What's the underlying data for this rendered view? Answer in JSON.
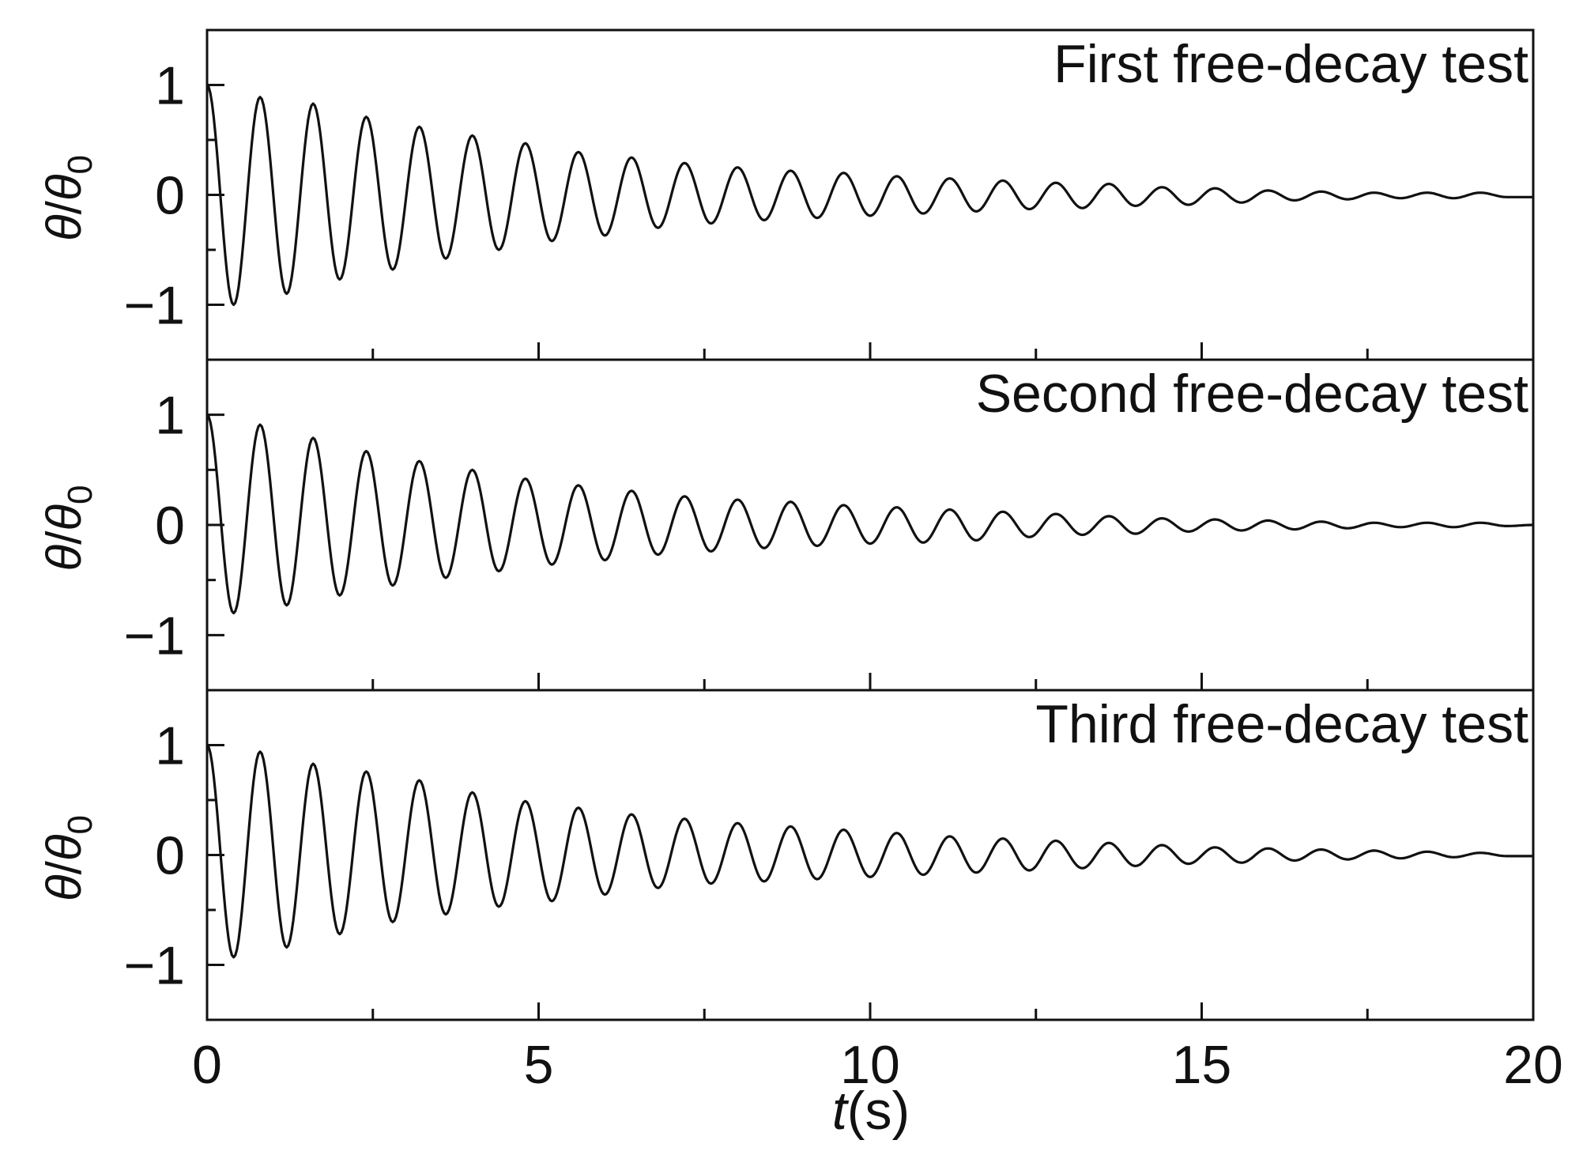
{
  "chart_data": [
    {
      "type": "line",
      "title": "First free-decay test",
      "xlabel": "",
      "ylabel": "θ/θ0",
      "ylabel_parts": {
        "num": "θ",
        "slash": "/",
        "den": "θ",
        "sub": "0"
      },
      "xlim": [
        0,
        20
      ],
      "ylim": [
        -1.5,
        1.5
      ],
      "yticks": [
        -1,
        0,
        1
      ],
      "ytick_labels": [
        "−1",
        "0",
        "1"
      ],
      "grid": false,
      "series": [
        {
          "x": [
            0,
            0.4,
            0.8,
            1.2,
            1.6,
            2.0,
            2.4,
            2.8,
            3.2,
            3.6,
            4.0,
            4.4,
            4.8,
            5.2,
            5.6,
            6.0,
            6.4,
            6.8,
            7.2,
            7.6,
            8.0,
            8.4,
            8.8,
            9.2,
            9.6,
            10.0,
            10.4,
            10.8,
            11.2,
            11.6,
            12.0,
            12.4,
            12.8,
            13.2,
            13.6,
            14.0,
            14.4,
            14.8,
            15.2,
            15.6,
            16.0,
            16.4,
            16.8,
            17.2,
            17.6,
            18.0,
            18.4,
            18.8,
            19.2,
            19.6,
            20.0
          ],
          "y": [
            1.0,
            -1.0,
            0.89,
            -0.9,
            0.83,
            -0.77,
            0.71,
            -0.68,
            0.62,
            -0.58,
            0.54,
            -0.5,
            0.47,
            -0.42,
            0.39,
            -0.37,
            0.34,
            -0.3,
            0.29,
            -0.26,
            0.25,
            -0.23,
            0.22,
            -0.21,
            0.2,
            -0.19,
            0.17,
            -0.17,
            0.15,
            -0.15,
            0.13,
            -0.13,
            0.11,
            -0.12,
            0.1,
            -0.1,
            0.07,
            -0.09,
            0.06,
            -0.07,
            0.04,
            -0.05,
            0.03,
            -0.04,
            0.02,
            -0.03,
            0.02,
            -0.03,
            0.02,
            -0.02,
            -0.02
          ]
        }
      ]
    },
    {
      "type": "line",
      "title": "Second free-decay test",
      "xlabel": "",
      "ylabel": "θ/θ0",
      "ylabel_parts": {
        "num": "θ",
        "slash": "/",
        "den": "θ",
        "sub": "0"
      },
      "xlim": [
        0,
        20
      ],
      "ylim": [
        -1.5,
        1.5
      ],
      "yticks": [
        -1,
        0,
        1
      ],
      "ytick_labels": [
        "−1",
        "0",
        "1"
      ],
      "grid": false,
      "series": [
        {
          "x": [
            0,
            0.4,
            0.8,
            1.2,
            1.6,
            2.0,
            2.4,
            2.8,
            3.2,
            3.6,
            4.0,
            4.4,
            4.8,
            5.2,
            5.6,
            6.0,
            6.4,
            6.8,
            7.2,
            7.6,
            8.0,
            8.4,
            8.8,
            9.2,
            9.6,
            10.0,
            10.4,
            10.8,
            11.2,
            11.6,
            12.0,
            12.4,
            12.8,
            13.2,
            13.6,
            14.0,
            14.4,
            14.8,
            15.2,
            15.6,
            16.0,
            16.4,
            16.8,
            17.2,
            17.6,
            18.0,
            18.4,
            18.8,
            19.2,
            19.6,
            20.0
          ],
          "y": [
            1.0,
            -0.8,
            0.91,
            -0.73,
            0.79,
            -0.64,
            0.67,
            -0.55,
            0.58,
            -0.48,
            0.5,
            -0.42,
            0.42,
            -0.36,
            0.36,
            -0.32,
            0.31,
            -0.27,
            0.26,
            -0.24,
            0.23,
            -0.21,
            0.21,
            -0.19,
            0.18,
            -0.17,
            0.16,
            -0.16,
            0.14,
            -0.14,
            0.12,
            -0.11,
            0.1,
            -0.09,
            0.08,
            -0.08,
            0.06,
            -0.06,
            0.05,
            -0.05,
            0.04,
            -0.04,
            0.03,
            -0.03,
            0.02,
            -0.02,
            0.02,
            -0.02,
            0.02,
            -0.01,
            0.0
          ]
        }
      ]
    },
    {
      "type": "line",
      "title": "Third free-decay test",
      "xlabel": "t(s)",
      "xlabel_parts": {
        "var": "t",
        "unit": "(s)"
      },
      "ylabel": "θ/θ0",
      "ylabel_parts": {
        "num": "θ",
        "slash": "/",
        "den": "θ",
        "sub": "0"
      },
      "xlim": [
        0,
        20
      ],
      "ylim": [
        -1.5,
        1.5
      ],
      "xticks": [
        0,
        5,
        10,
        15,
        20
      ],
      "xtick_labels": [
        "0",
        "5",
        "10",
        "15",
        "20"
      ],
      "yticks": [
        -1,
        0,
        1
      ],
      "ytick_labels": [
        "−1",
        "0",
        "1"
      ],
      "grid": false,
      "series": [
        {
          "x": [
            0,
            0.4,
            0.8,
            1.2,
            1.6,
            2.0,
            2.4,
            2.8,
            3.2,
            3.6,
            4.0,
            4.4,
            4.8,
            5.2,
            5.6,
            6.0,
            6.4,
            6.8,
            7.2,
            7.6,
            8.0,
            8.4,
            8.8,
            9.2,
            9.6,
            10.0,
            10.4,
            10.8,
            11.2,
            11.6,
            12.0,
            12.4,
            12.8,
            13.2,
            13.6,
            14.0,
            14.4,
            14.8,
            15.2,
            15.6,
            16.0,
            16.4,
            16.8,
            17.2,
            17.6,
            18.0,
            18.4,
            18.8,
            19.2,
            19.6,
            20.0
          ],
          "y": [
            1.0,
            -0.93,
            0.94,
            -0.84,
            0.83,
            -0.72,
            0.76,
            -0.61,
            0.68,
            -0.54,
            0.57,
            -0.47,
            0.49,
            -0.42,
            0.43,
            -0.36,
            0.37,
            -0.3,
            0.33,
            -0.26,
            0.29,
            -0.24,
            0.26,
            -0.22,
            0.23,
            -0.2,
            0.2,
            -0.18,
            0.17,
            -0.16,
            0.15,
            -0.14,
            0.13,
            -0.12,
            0.11,
            -0.1,
            0.09,
            -0.08,
            0.07,
            -0.07,
            0.06,
            -0.05,
            0.05,
            -0.04,
            0.04,
            -0.03,
            0.03,
            -0.02,
            0.02,
            -0.01,
            -0.01
          ]
        }
      ]
    }
  ]
}
